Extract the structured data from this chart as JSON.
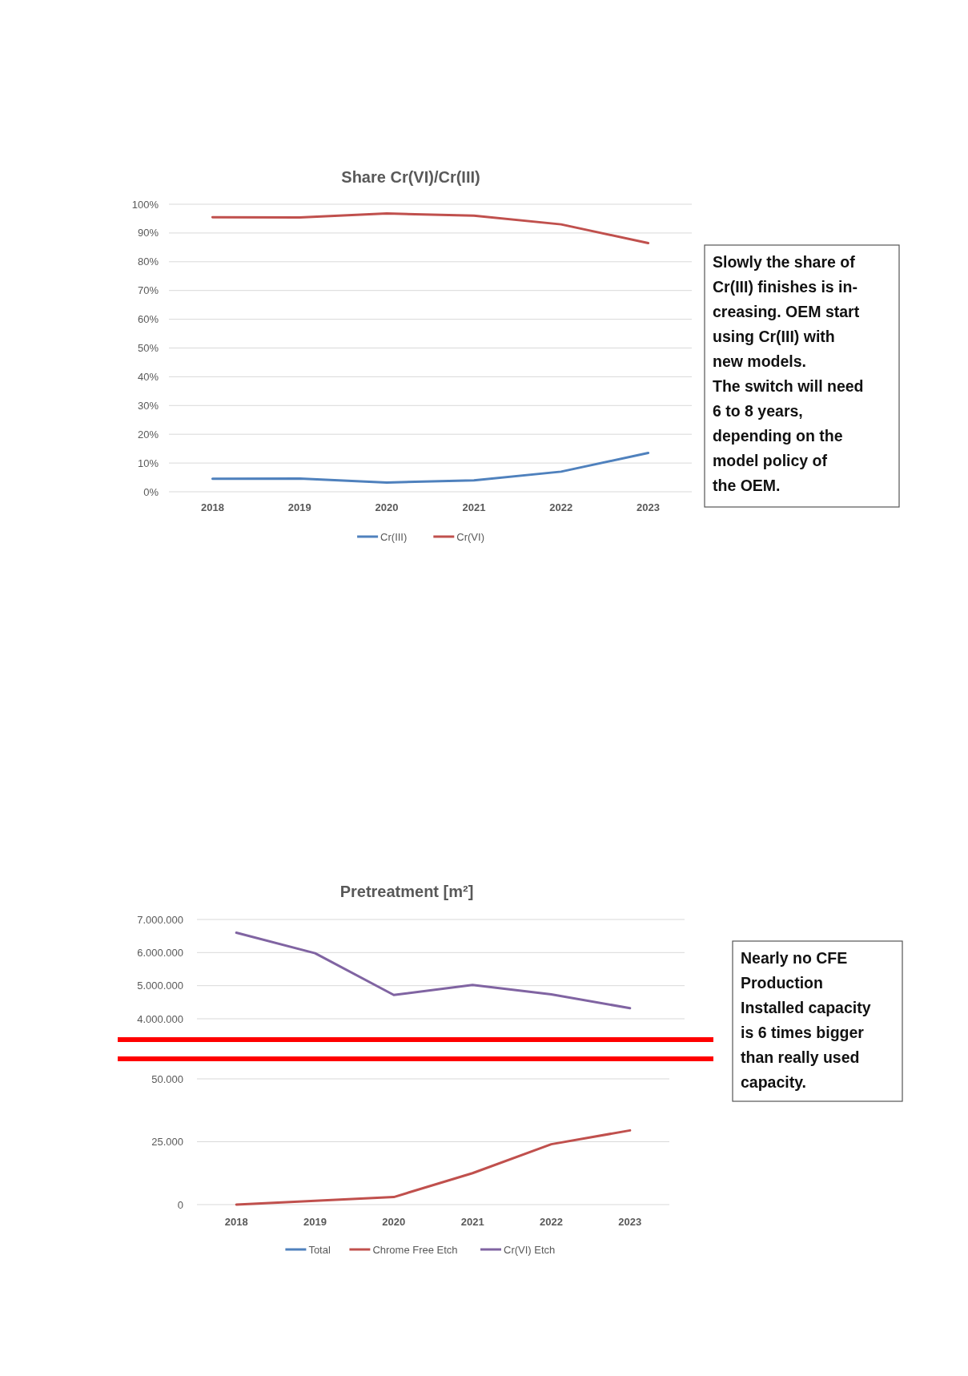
{
  "chart_data": [
    {
      "type": "line",
      "title": "Share Cr(VI)/Cr(III)",
      "categories": [
        "2018",
        "2019",
        "2020",
        "2021",
        "2022",
        "2023"
      ],
      "series": [
        {
          "name": "Cr(III)",
          "color": "#4f81bd",
          "values": [
            4.5,
            4.6,
            3.2,
            4,
            7,
            13.5
          ]
        },
        {
          "name": "Cr(VI)",
          "color": "#c0504d",
          "values": [
            95.5,
            95.4,
            96.8,
            96,
            93,
            86.5
          ]
        }
      ],
      "ylim": [
        0,
        100
      ],
      "yticks": [
        {
          "value": 0,
          "label": "0%"
        },
        {
          "value": 10,
          "label": "10%"
        },
        {
          "value": 20,
          "label": "20%"
        },
        {
          "value": 30,
          "label": "30%"
        },
        {
          "value": 40,
          "label": "40%"
        },
        {
          "value": 50,
          "label": "50%"
        },
        {
          "value": 60,
          "label": "60%"
        },
        {
          "value": 70,
          "label": "70%"
        },
        {
          "value": 80,
          "label": "80%"
        },
        {
          "value": 90,
          "label": "90%"
        },
        {
          "value": 100,
          "label": "100%"
        }
      ],
      "grid": "y",
      "legend": "bottom",
      "annotations": [
        "Slowly the share of\nCr(III) finishes is in-\ncreasing. OEM start\nusing Cr(III) with\nnew models.\nThe switch will need\n6 to 8 years,\ndepending on the\nmodel policy of\nthe OEM."
      ]
    },
    {
      "type": "line",
      "title": "Pretreatment [m²]",
      "categories": [
        "2018",
        "2019",
        "2020",
        "2021",
        "2022",
        "2023"
      ],
      "series": [
        {
          "name": "Cr(VI) Etch",
          "color": "#8064a2",
          "values": [
            6600000,
            5980000,
            4720000,
            5020000,
            4740000,
            4320000
          ]
        }
      ],
      "ylim": [
        4000000,
        7000000
      ],
      "yticks": [
        {
          "value": 4000000,
          "label": "4.000.000"
        },
        {
          "value": 5000000,
          "label": "5.000.000"
        },
        {
          "value": 6000000,
          "label": "6.000.000"
        },
        {
          "value": 7000000,
          "label": "7.000.000"
        }
      ],
      "grid": "y",
      "tick_labels": "y",
      "annotations": [
        "Nearly no CFE\nProduction\nInstalled capacity\nis 6 times bigger\nthan really used\ncapacity."
      ]
    },
    {
      "type": "line",
      "categories": [
        "2018",
        "2019",
        "2020",
        "2021",
        "2022",
        "2023"
      ],
      "series": [
        {
          "name": "Total",
          "color": "#4f81bd",
          "values": [
            null,
            null,
            null,
            null,
            null,
            null
          ]
        },
        {
          "name": "Chrome Free Etch",
          "color": "#c0504d",
          "values": [
            0,
            1500,
            3000,
            12500,
            24000,
            29500
          ]
        }
      ],
      "ylim": [
        0,
        50000
      ],
      "yticks": [
        {
          "value": 0,
          "label": "0"
        },
        {
          "value": 25000,
          "label": "25.000"
        },
        {
          "value": 50000,
          "label": "50.000"
        }
      ],
      "grid": "y",
      "legend": "bottom"
    }
  ]
}
